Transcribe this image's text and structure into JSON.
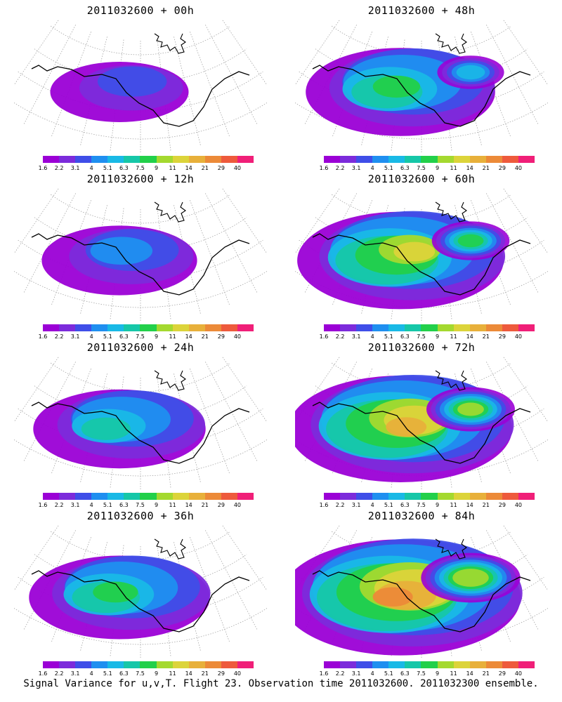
{
  "panels": [
    {
      "title": "2011032600 + 00h",
      "level": 0
    },
    {
      "title": "2011032600 + 48h",
      "level": 3
    },
    {
      "title": "2011032600 + 12h",
      "level": 1
    },
    {
      "title": "2011032600 + 60h",
      "level": 4
    },
    {
      "title": "2011032600 + 24h",
      "level": 2
    },
    {
      "title": "2011032600 + 72h",
      "level": 5
    },
    {
      "title": "2011032600 + 36h",
      "level": 2.5
    },
    {
      "title": "2011032600 + 84h",
      "level": 6
    }
  ],
  "colorbar": {
    "colors": [
      "#9b00d6",
      "#7c2bdb",
      "#3f4ee8",
      "#1f8ff0",
      "#19b9e6",
      "#16c7a8",
      "#22d04a",
      "#a4d92f",
      "#dcd43a",
      "#e8b03a",
      "#ec8a38",
      "#ee5a3c",
      "#f01f78"
    ],
    "ticks": [
      "1.6",
      "2.2",
      "3.1",
      "4",
      "5.1",
      "6.3",
      "7.5",
      "9",
      "11",
      "14",
      "21",
      "29",
      "40"
    ]
  },
  "footer": "Signal Variance for u,v,T. Flight 23. Observation time 2011032600. 2011032300 ensemble."
}
